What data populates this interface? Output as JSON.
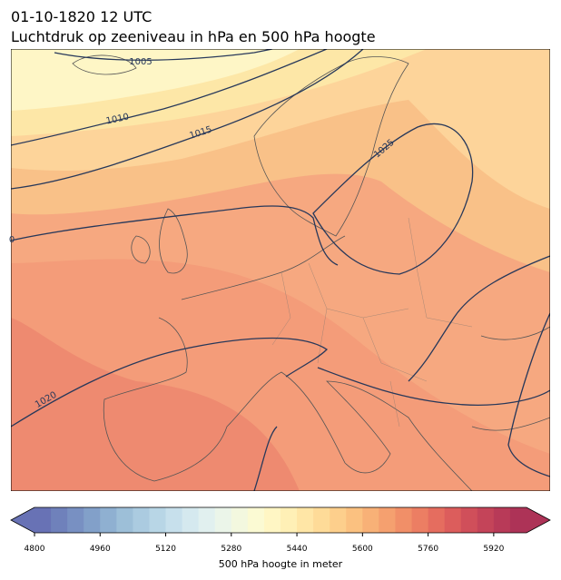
{
  "header": {
    "title": "01-10-1820 12 UTC",
    "subtitle": "Luchtdruk op zeeniveau in hPa en 500 hPa hoogte"
  },
  "map": {
    "contour_labels": [
      "1005",
      "1010",
      "1015",
      "1020",
      "1025",
      "0"
    ]
  },
  "colorbar": {
    "label": "500 hPa hoogte in meter",
    "lim": [
      4800,
      6000
    ],
    "ticks": [
      4800,
      4960,
      5120,
      5280,
      5440,
      5600,
      5760,
      5920
    ],
    "colors": [
      "#6872b5",
      "#6f81bb",
      "#7890c2",
      "#82a0c9",
      "#8fb0d1",
      "#9dbfd8",
      "#abcbe0",
      "#b8d6e6",
      "#c7e0ec",
      "#d5e9ef",
      "#e1f0ef",
      "#ebf5e9",
      "#f3f8df",
      "#fbfad3",
      "#fff6c4",
      "#fff0b6",
      "#ffe6a6",
      "#fedb98",
      "#fdcf8c",
      "#fbc180",
      "#f8b177",
      "#f5a06f",
      "#f18f68",
      "#ec7e63",
      "#e56d5f",
      "#dc5d5c",
      "#d04f5a",
      "#c44459",
      "#b83a58",
      "#ad3357"
    ]
  }
}
